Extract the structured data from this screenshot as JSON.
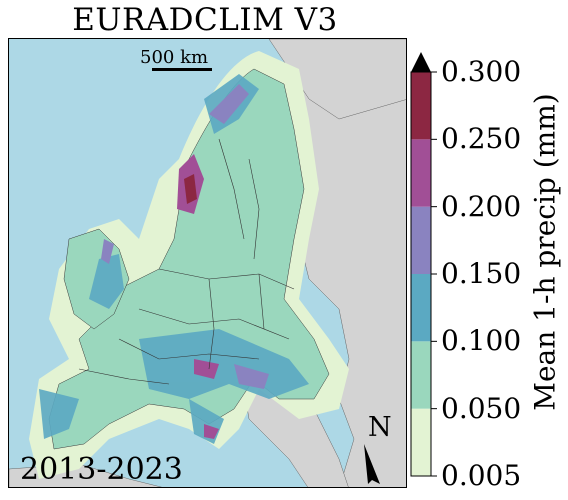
{
  "title": "EURADCLIM V3",
  "period": "2013-2023",
  "scalebar": {
    "label": "500 km"
  },
  "north_label": "N",
  "colorbar": {
    "label": "Mean 1-h precip (mm)",
    "ticks": [
      "0.005",
      "0.050",
      "0.100",
      "0.150",
      "0.200",
      "0.250",
      "0.300"
    ],
    "bins": [
      {
        "min": 0.005,
        "max": 0.05,
        "color": "#e3f3d3"
      },
      {
        "min": 0.05,
        "max": 0.1,
        "color": "#9ad7bd"
      },
      {
        "min": 0.1,
        "max": 0.15,
        "color": "#5ba9c2"
      },
      {
        "min": 0.15,
        "max": 0.2,
        "color": "#8a83c0"
      },
      {
        "min": 0.2,
        "max": 0.25,
        "color": "#a14f96"
      },
      {
        "min": 0.25,
        "max": 0.3,
        "color": "#8c2742"
      }
    ],
    "extend": "max"
  },
  "colors": {
    "sea": "#add8e6",
    "land_no_data": "#d3d3d3"
  }
}
